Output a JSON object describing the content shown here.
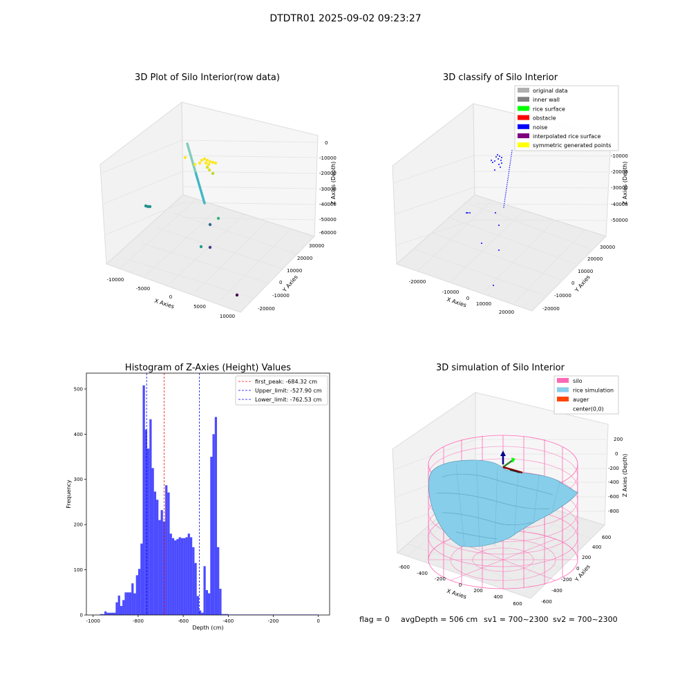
{
  "suptitle": "DTDTR01 2025-09-02 09:23:27",
  "footer": {
    "flag": "flag = 0",
    "avg": "avgDepth = 506 cm",
    "sv1": "sv1 = 700~2300",
    "sv2": "sv2 = 700~2300"
  },
  "chart_data": [
    {
      "type": "scatter",
      "projection": "3d",
      "title": "3D Plot of Silo Interior(row data)",
      "xlabel": "X Axies",
      "ylabel": "Y Axies",
      "zlabel": "Z Axies (Depth)",
      "x_ticks": [
        "-10000",
        "-5000",
        "0",
        "5000",
        "10000"
      ],
      "y_ticks": [
        "-20000",
        "-10000",
        "0",
        "10000",
        "20000",
        "30000"
      ],
      "z_ticks": [
        "0",
        "-10000",
        "-20000",
        "-30000",
        "-40000",
        "-50000",
        "-60000"
      ],
      "colormap": "viridis",
      "notes": "point cloud: diagonal teal wall trace, yellow cluster near top, scattered outlier points"
    },
    {
      "type": "scatter",
      "projection": "3d",
      "title": "3D classify of Silo Interior",
      "xlabel": "X Axies",
      "ylabel": "Y Axies",
      "zlabel": "Z Axies (Depth)",
      "x_ticks": [
        "-20000",
        "-10000",
        "0",
        "10000",
        "20000"
      ],
      "y_ticks": [
        "-20000",
        "-10000",
        "0",
        "10000",
        "20000",
        "30000"
      ],
      "z_ticks": [
        "-10000",
        "-20000",
        "-30000",
        "-40000",
        "-50000"
      ],
      "legend": [
        {
          "label": "original data",
          "color": "#b0b0b0"
        },
        {
          "label": "inner wall",
          "color": "#808080"
        },
        {
          "label": "rice surface",
          "color": "#00ff00"
        },
        {
          "label": "obstacle",
          "color": "#ff0000"
        },
        {
          "label": "noise",
          "color": "#0000ff"
        },
        {
          "label": "interpolated rice surface",
          "color": "#800080"
        },
        {
          "label": "symmetric generated points",
          "color": "#ffff00"
        }
      ],
      "legend_position": "top-right"
    },
    {
      "type": "bar",
      "title": "Histogram of Z-Axies (Height) Values",
      "xlabel": "Depth (cm)",
      "ylabel": "Frequency",
      "bar_color": "#0000ff",
      "bin_width": 10,
      "bins_start": [
        -970,
        -960,
        -950,
        -940,
        -930,
        -920,
        -910,
        -900,
        -890,
        -880,
        -870,
        -860,
        -850,
        -840,
        -830,
        -820,
        -810,
        -800,
        -790,
        -780,
        -770,
        -760,
        -750,
        -740,
        -730,
        -720,
        -710,
        -700,
        -690,
        -680,
        -670,
        -660,
        -650,
        -640,
        -630,
        -620,
        -610,
        -600,
        -590,
        -580,
        -570,
        -560,
        -550,
        -540,
        -530,
        -520,
        -510,
        -500,
        -490,
        -480,
        -470,
        -460,
        -450,
        -440,
        -430,
        -420,
        -410,
        -400,
        -390,
        -380,
        -370,
        -360,
        -350,
        -340,
        -330,
        -320,
        -310,
        -300,
        -290,
        -280,
        -270,
        -260,
        -250,
        -240,
        -230,
        -220,
        -210,
        -200,
        -190,
        -180,
        -170,
        -160,
        -150,
        -140,
        -130,
        -120,
        -110,
        -100,
        -90,
        -80,
        -70,
        -60,
        -50,
        -40,
        -30,
        -20,
        -10
      ],
      "values": [
        2,
        2,
        8,
        5,
        5,
        5,
        5,
        28,
        43,
        20,
        33,
        50,
        50,
        50,
        70,
        48,
        88,
        102,
        158,
        508,
        410,
        368,
        433,
        325,
        273,
        255,
        210,
        232,
        207,
        287,
        271,
        180,
        170,
        165,
        168,
        172,
        170,
        170,
        172,
        180,
        172,
        150,
        115,
        42,
        10,
        5,
        108,
        55,
        48,
        350,
        400,
        438,
        150,
        58,
        2,
        2,
        2,
        1,
        1,
        1,
        1,
        1,
        1,
        1,
        1,
        1,
        1,
        1,
        1,
        1,
        1,
        1,
        1,
        1,
        1,
        1,
        1,
        1,
        1,
        1,
        1,
        1,
        1,
        1,
        1,
        1,
        1,
        1,
        1,
        1,
        1,
        1,
        1,
        1,
        1,
        1,
        1
      ],
      "xlim": [
        -1030,
        50
      ],
      "ylim": [
        0,
        535
      ],
      "x_ticks": [
        -1000,
        -800,
        -600,
        -400,
        -200,
        0
      ],
      "y_ticks": [
        0,
        100,
        200,
        300,
        400,
        500
      ],
      "vlines": [
        {
          "label": "first_peak: -684.32 cm",
          "x": -684.32,
          "color": "#ff0000"
        },
        {
          "label": "Upper_limit: -527.90 cm",
          "x": -527.9,
          "color": "#0000ff"
        },
        {
          "label": "Lower_limit: -762.53 cm",
          "x": -762.53,
          "color": "#0000ff"
        }
      ],
      "legend_position": "top-right"
    },
    {
      "type": "area",
      "projection": "3d",
      "title": "3D simulation of Silo Interior",
      "xlabel": "X Axies",
      "ylabel": "Y Axies",
      "zlabel": "Z Axies (Depth)",
      "x_ticks": [
        "-600",
        "-400",
        "-200",
        "0",
        "200",
        "400",
        "600"
      ],
      "y_ticks": [
        "-600",
        "-400",
        "-200",
        "0",
        "200",
        "400",
        "600"
      ],
      "z_ticks": [
        "200",
        "0",
        "-200",
        "-400",
        "-600",
        "-800"
      ],
      "legend": [
        {
          "label": "silo",
          "color": "#ff69b4"
        },
        {
          "label": "rice simulation",
          "color": "#87ceeb"
        },
        {
          "label": "auger",
          "color": "#ff4500"
        },
        {
          "label": "center(0,0)",
          "color": ""
        }
      ],
      "legend_position": "top-right"
    }
  ]
}
